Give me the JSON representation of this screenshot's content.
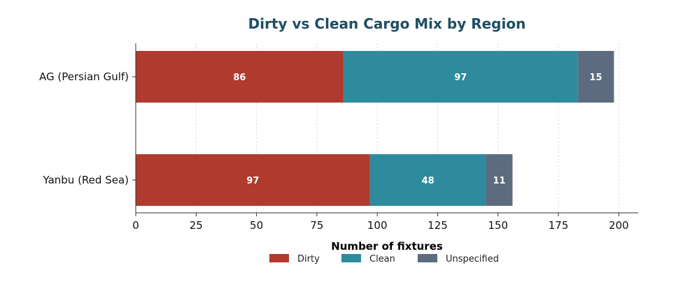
{
  "chart_data": {
    "type": "bar",
    "orientation": "horizontal",
    "stacked": true,
    "title": "Dirty vs Clean Cargo Mix by Region",
    "xlabel": "Number of fixtures",
    "ylabel": "",
    "categories": [
      "AG (Persian Gulf)",
      "Yanbu (Red Sea)"
    ],
    "series": [
      {
        "name": "Dirty",
        "color": "#b03a2e",
        "values": [
          86,
          97
        ]
      },
      {
        "name": "Clean",
        "color": "#2e8b9e",
        "values": [
          97,
          48
        ]
      },
      {
        "name": "Unspecified",
        "color": "#5d6b7e",
        "values": [
          15,
          11
        ]
      }
    ],
    "xlim": [
      0,
      208
    ],
    "xticks": [
      0,
      25,
      50,
      75,
      100,
      125,
      150,
      175,
      200
    ],
    "grid": "vertical-dotted",
    "legend": "bottom-center"
  }
}
